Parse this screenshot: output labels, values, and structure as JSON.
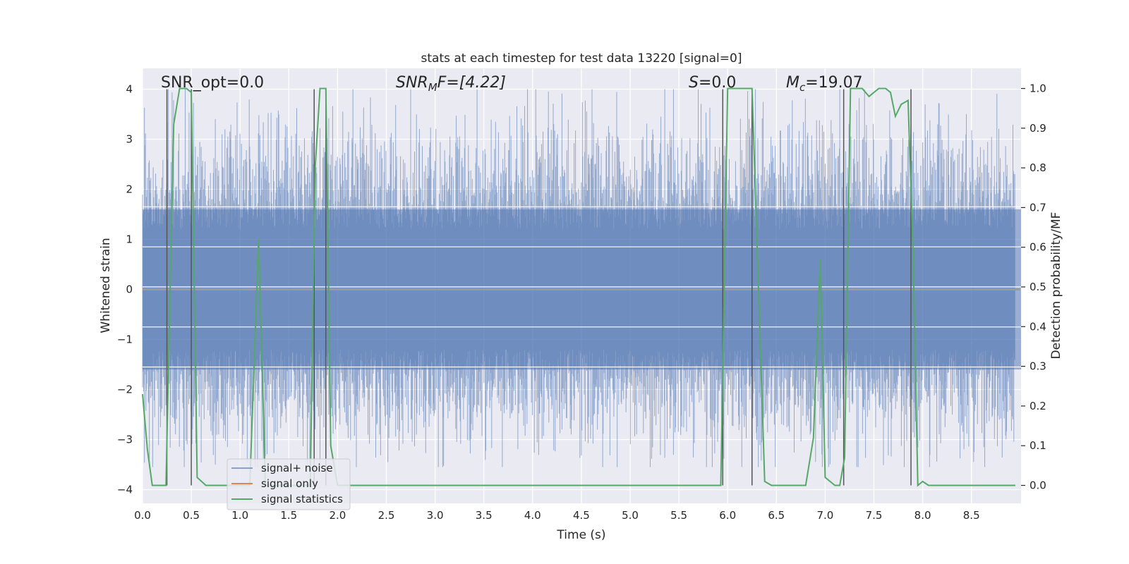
{
  "chart_data": {
    "type": "line",
    "title": "stats at each timestep for test data 13220 [signal=0]",
    "xlabel": "Time (s)",
    "ylabel_left": "Whitened strain",
    "ylabel_right": "Detection probability/MF",
    "xlim": [
      0.0,
      9.0
    ],
    "ylim_left": [
      -4.4,
      4.4
    ],
    "ylim_right": [
      -0.045,
      1.045
    ],
    "x_ticks": [
      "0.0",
      "0.5",
      "1.0",
      "1.5",
      "2.0",
      "2.5",
      "3.0",
      "3.5",
      "4.0",
      "4.5",
      "5.0",
      "5.5",
      "6.0",
      "6.5",
      "7.0",
      "7.5",
      "8.0",
      "8.5"
    ],
    "y_ticks_left": [
      "−4",
      "−3",
      "−2",
      "−1",
      "0",
      "1",
      "2",
      "3",
      "4"
    ],
    "y_ticks_right": [
      "0.0",
      "0.1",
      "0.2",
      "0.3",
      "0.4",
      "0.5",
      "0.6",
      "0.7",
      "0.8",
      "0.9",
      "1.0"
    ],
    "grid": true,
    "annotations": {
      "snr_opt": "SNR_opt=0.0",
      "snr_mf_base": "SNR",
      "snr_mf_sub": "M",
      "snr_mf_rest": "F=[4.22]",
      "s_it": "S",
      "s_rest": "=0.0",
      "mc_it": "M",
      "mc_sub": "c",
      "mc_rest": "=19.07"
    },
    "colors": {
      "noise": "#4c72b0",
      "signal": "#dd8452",
      "stats": "#55a868",
      "vlines": "#555555",
      "background": "#eaeaf2"
    },
    "legend": {
      "placement": "lower-left",
      "entries": [
        "signal+ noise",
        "signal only",
        "signal statistics"
      ]
    },
    "series": [
      {
        "name": "signal+ noise",
        "axis": "left",
        "description_values": "whitened strain noise, approximately Gaussian, range about -3.5 to 4.0",
        "envelope_upper": 1.6,
        "envelope_lower": -1.6
      },
      {
        "name": "signal only",
        "axis": "left",
        "x": [
          0.0,
          9.0
        ],
        "y": [
          0.0,
          0.0
        ]
      },
      {
        "name": "signal statistics",
        "axis": "right",
        "x": [
          0.0,
          0.05,
          0.1,
          0.24,
          0.32,
          0.38,
          0.45,
          0.5,
          0.56,
          0.65,
          1.1,
          1.19,
          1.26,
          1.72,
          1.77,
          1.82,
          1.88,
          1.93,
          2.0,
          5.5,
          5.93,
          6.0,
          6.15,
          6.25,
          6.38,
          6.45,
          6.55,
          6.8,
          6.88,
          6.95,
          7.0,
          7.1,
          7.15,
          7.2,
          7.26,
          7.3,
          7.38,
          7.45,
          7.5,
          7.55,
          7.62,
          7.67,
          7.72,
          7.78,
          7.85,
          7.9,
          7.95,
          8.0,
          8.06,
          8.12,
          8.25,
          8.95
        ],
        "y": [
          0.23,
          0.09,
          0.0,
          0.0,
          0.91,
          1.0,
          1.0,
          0.99,
          0.02,
          0.0,
          0.0,
          0.62,
          0.0,
          0.0,
          0.8,
          1.0,
          1.0,
          0.1,
          0.0,
          0.0,
          0.0,
          1.0,
          1.0,
          1.0,
          0.01,
          0.0,
          0.0,
          0.0,
          0.12,
          0.57,
          0.02,
          0.0,
          0.0,
          0.07,
          1.0,
          1.0,
          1.0,
          0.98,
          0.99,
          1.0,
          1.0,
          0.99,
          0.93,
          0.96,
          0.97,
          0.6,
          0.0,
          0.01,
          0.0,
          0.0,
          0.0,
          0.0
        ]
      }
    ],
    "vertical_lines": [
      0.25,
      0.5,
      1.76,
      1.88,
      5.95,
      6.25,
      7.19,
      7.88
    ],
    "horizontal_markers_left": [
      1.65,
      0.85,
      0.05,
      -0.75,
      -1.55
    ]
  }
}
